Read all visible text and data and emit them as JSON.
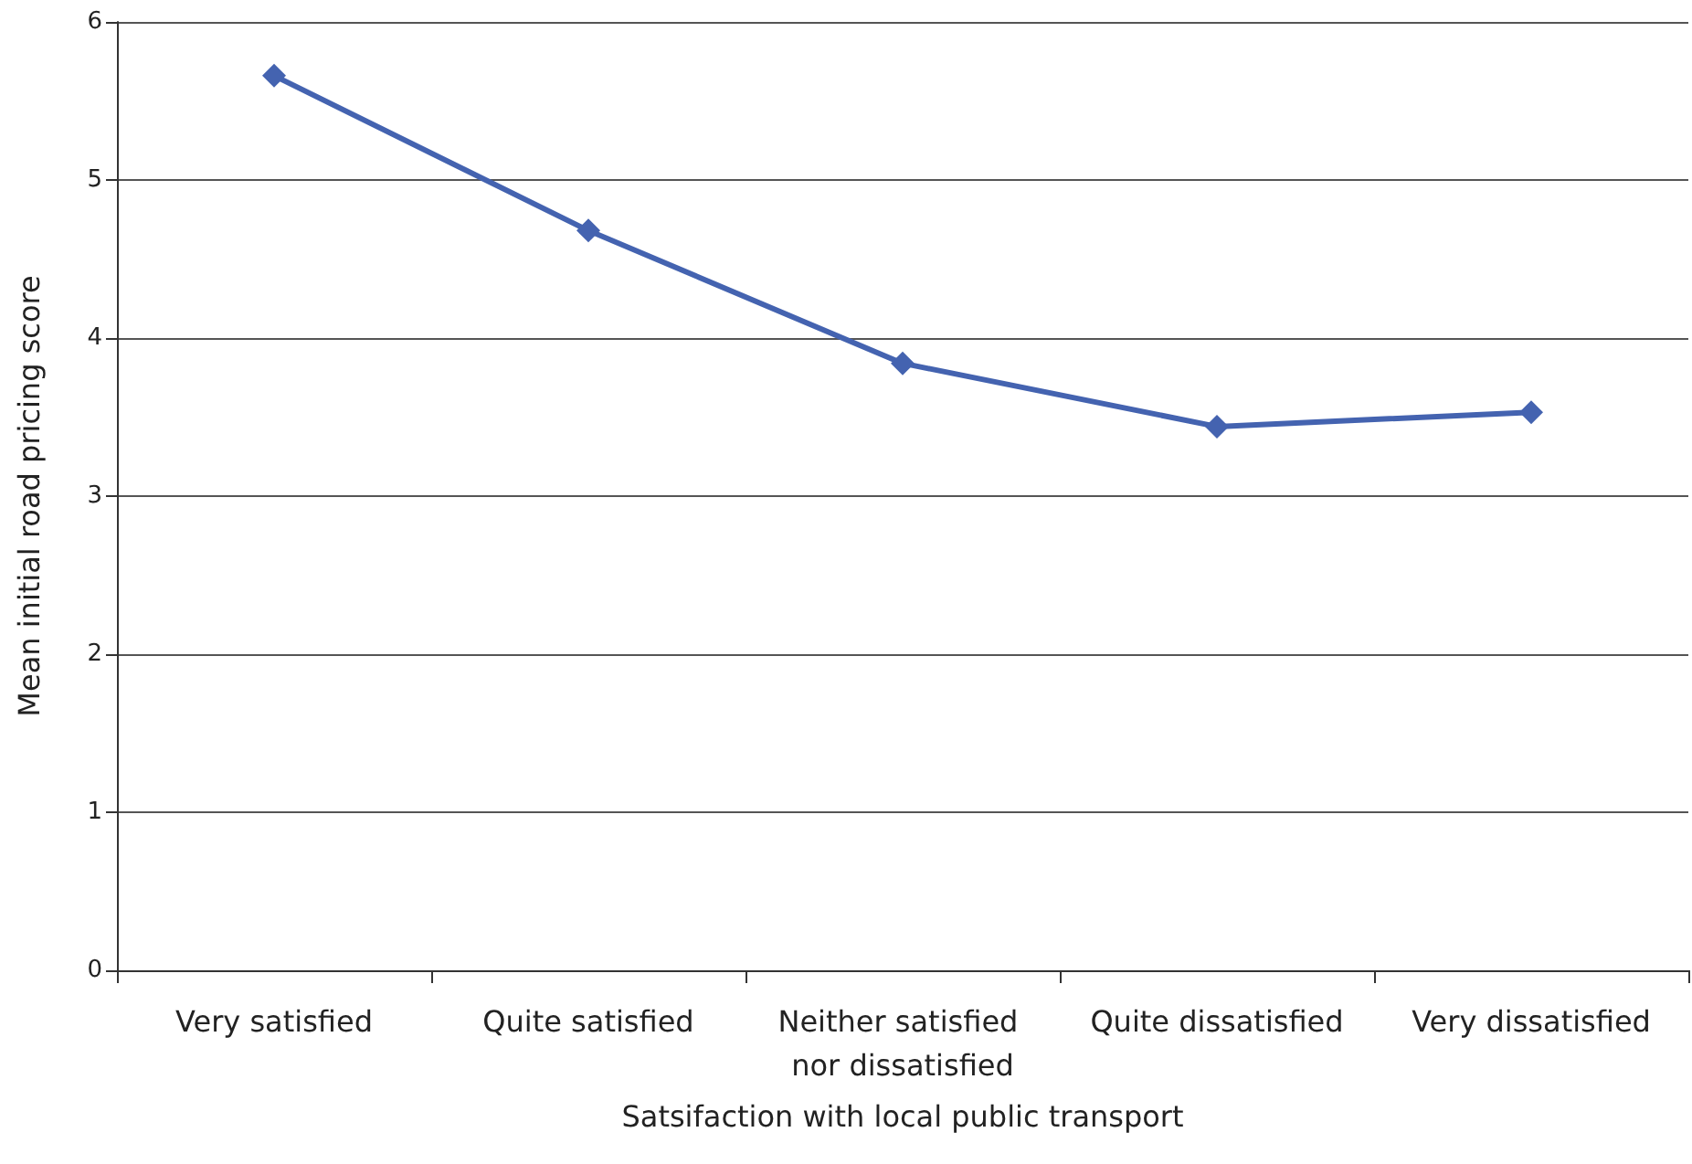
{
  "chart_data": {
    "type": "line",
    "xlabel": "Satsifaction with local public transport",
    "ylabel": "Mean initial road pricing score",
    "categories": [
      "Very satisfied",
      "Quite satisfied",
      "Neither satisfied nor dissatisfied",
      "Quite dissatisfied",
      "Very dissatisfied"
    ],
    "series": [
      {
        "color": "#4463b0",
        "values": [
          5.66,
          4.68,
          3.84,
          3.44,
          3.53
        ]
      }
    ],
    "ylim": [
      0,
      6
    ],
    "yticks": [
      0,
      1,
      2,
      3,
      4,
      5,
      6
    ],
    "grid": "y",
    "marker": "diamond",
    "line_style": "solid"
  }
}
